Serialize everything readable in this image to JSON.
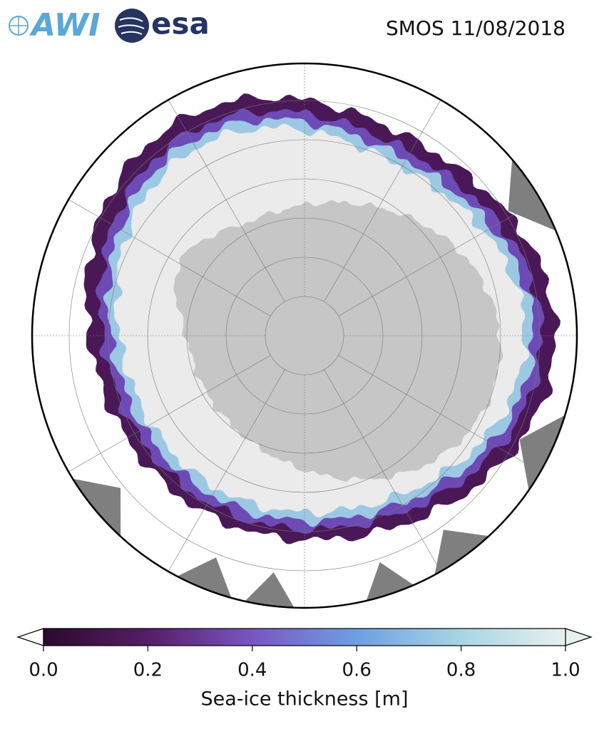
{
  "header": {
    "awi_logo": "AWI",
    "esa_logo": "esa",
    "title": "SMOS 11/08/2018"
  },
  "colorbar": {
    "label": "Sea-ice thickness [m]",
    "lim": [
      0,
      1
    ],
    "ticks": [
      {
        "value": 0,
        "label": "0.0"
      },
      0.2,
      0.4,
      0.6,
      0.8,
      {
        "value": 1,
        "label": "1.0"
      }
    ],
    "colors": [
      "#2b0a2d",
      "#561d66",
      "#7a55c2",
      "#6e9fe2",
      "#a8d5e4",
      "#e8f0ee"
    ]
  }
}
